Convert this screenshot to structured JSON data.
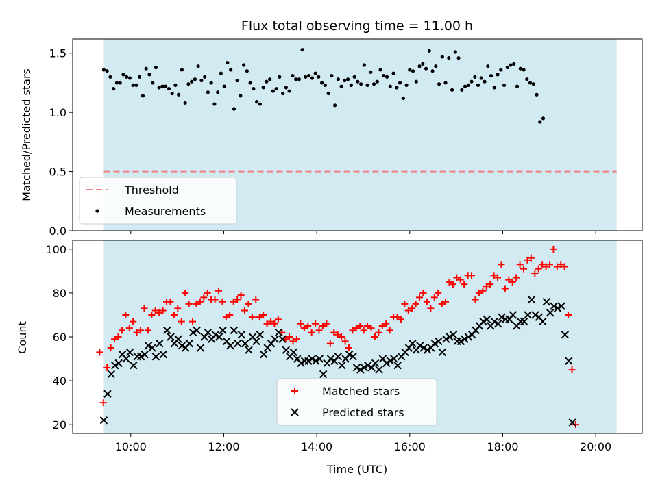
{
  "chart_data": [
    {
      "type": "scatter",
      "title": "Flux total observing time = 11.00 h",
      "ylabel": "Matched/Predicted stars",
      "xlabel": "",
      "x_range_hours": [
        8.75,
        21.0
      ],
      "ylim": [
        0,
        1.62
      ],
      "yticks": [
        "0.0",
        "0.5",
        "1.0",
        "1.5"
      ],
      "shaded_span_hours": [
        9.42,
        20.45
      ],
      "shade_color": "#add8e6",
      "threshold": {
        "name": "Threshold",
        "value": 0.5,
        "x_start_hours": 9.42,
        "x_end_hours": 20.45,
        "color": "#f08080"
      },
      "legend": {
        "placement": "lower-left",
        "entries": [
          "Threshold",
          "Measurements"
        ]
      },
      "series": [
        {
          "name": "Measurements",
          "color": "#000000",
          "marker": "dot",
          "x_start_hours": 9.42,
          "x_step_hours": 0.07,
          "values": [
            1.36,
            1.35,
            1.3,
            1.2,
            1.25,
            1.25,
            1.32,
            1.3,
            1.29,
            1.23,
            1.23,
            1.3,
            1.14,
            1.37,
            1.32,
            1.25,
            1.38,
            1.21,
            1.22,
            1.22,
            1.2,
            1.16,
            1.23,
            1.15,
            1.36,
            1.08,
            1.24,
            1.26,
            1.28,
            1.39,
            1.27,
            1.3,
            1.17,
            1.25,
            1.07,
            1.17,
            1.33,
            1.22,
            1.42,
            1.36,
            1.03,
            1.27,
            1.14,
            1.4,
            1.35,
            1.25,
            1.2,
            1.09,
            1.07,
            1.21,
            1.26,
            1.28,
            1.18,
            1.2,
            1.3,
            1.16,
            1.21,
            1.18,
            1.31,
            1.28,
            1.28,
            1.53,
            1.3,
            1.31,
            1.29,
            1.33,
            1.3,
            1.25,
            1.23,
            1.16,
            1.31,
            1.06,
            1.28,
            1.22,
            1.27,
            1.28,
            1.23,
            1.3,
            1.26,
            1.24,
            1.4,
            1.23,
            1.34,
            1.24,
            1.26,
            1.36,
            1.31,
            1.3,
            1.22,
            1.33,
            1.21,
            1.25,
            1.12,
            1.23,
            1.36,
            1.35,
            1.26,
            1.39,
            1.41,
            1.37,
            1.52,
            1.35,
            1.39,
            1.24,
            1.47,
            1.25,
            1.46,
            1.19,
            1.51,
            1.46,
            1.19,
            1.22,
            1.23,
            1.26,
            1.3,
            1.23,
            1.29,
            1.26,
            1.39,
            1.31,
            1.21,
            1.32,
            1.36,
            1.23,
            1.38,
            1.4,
            1.41,
            1.22,
            1.37,
            1.36,
            1.28,
            1.25,
            1.24,
            1.15,
            0.92,
            0.95
          ]
        }
      ]
    },
    {
      "type": "scatter",
      "title": "",
      "ylabel": "Count",
      "xlabel": "Time (UTC)",
      "x_range_hours": [
        8.75,
        21.0
      ],
      "xticks": [
        "10:00",
        "12:00",
        "14:00",
        "16:00",
        "18:00",
        "20:00"
      ],
      "xtick_hours": [
        10,
        12,
        14,
        16,
        18,
        20
      ],
      "ylim": [
        16,
        104
      ],
      "yticks": [
        "20",
        "40",
        "60",
        "80",
        "100"
      ],
      "shaded_span_hours": [
        9.42,
        20.45
      ],
      "shade_color": "#add8e6",
      "legend": {
        "placement": "lower-center",
        "entries": [
          "Matched stars",
          "Predicted stars"
        ]
      },
      "series": [
        {
          "name": "Matched stars",
          "color": "#ff0000",
          "marker": "plus",
          "x_start_hours": 9.33,
          "x_step_hours": 0.08,
          "values": [
            53,
            30,
            46,
            55,
            59,
            60,
            63,
            70,
            64,
            67,
            62,
            63,
            73,
            63,
            70,
            72,
            71,
            72,
            76,
            76,
            70,
            73,
            67,
            80,
            75,
            67,
            75,
            76,
            78,
            80,
            77,
            77,
            81,
            76,
            69,
            70,
            76,
            77,
            79,
            72,
            75,
            69,
            77,
            69,
            70,
            66,
            67,
            66,
            68,
            62,
            59,
            60,
            58,
            59,
            66,
            64,
            65,
            62,
            66,
            63,
            65,
            66,
            57,
            62,
            61,
            60,
            58,
            55,
            63,
            64,
            65,
            63,
            65,
            64,
            60,
            62,
            65,
            66,
            63,
            69,
            69,
            68,
            75,
            72,
            73,
            75,
            78,
            80,
            76,
            73,
            78,
            80,
            75,
            76,
            85,
            84,
            87,
            86,
            84,
            88,
            88,
            77,
            80,
            81,
            83,
            84,
            88,
            87,
            93,
            82,
            86,
            85,
            87,
            93,
            91,
            95,
            96,
            89,
            91,
            93,
            92,
            93,
            100,
            92,
            93,
            92,
            70,
            45,
            20
          ]
        },
        {
          "name": "Predicted stars",
          "color": "#000000",
          "marker": "x",
          "x_start_hours": 9.42,
          "x_step_hours": 0.08,
          "values": [
            22,
            34,
            43,
            47,
            48,
            52,
            50,
            53,
            47,
            51,
            51,
            52,
            56,
            55,
            51,
            57,
            52,
            63,
            60,
            57,
            59,
            56,
            55,
            57,
            62,
            63,
            55,
            60,
            62,
            59,
            61,
            60,
            63,
            58,
            56,
            63,
            57,
            61,
            57,
            54,
            60,
            58,
            61,
            52,
            55,
            57,
            59,
            62,
            59,
            54,
            51,
            53,
            50,
            48,
            49,
            49,
            50,
            49,
            50,
            43,
            48,
            50,
            49,
            51,
            47,
            50,
            52,
            51,
            46,
            45,
            46,
            47,
            46,
            48,
            45,
            50,
            48,
            49,
            50,
            47,
            51,
            53,
            55,
            57,
            54,
            56,
            55,
            54,
            55,
            57,
            58,
            53,
            59,
            60,
            61,
            58,
            58,
            59,
            60,
            61,
            63,
            65,
            67,
            68,
            65,
            67,
            66,
            69,
            68,
            68,
            70,
            65,
            67,
            67,
            70,
            77,
            70,
            69,
            67,
            76,
            71,
            74,
            73,
            74,
            61,
            49,
            21
          ]
        }
      ]
    }
  ]
}
